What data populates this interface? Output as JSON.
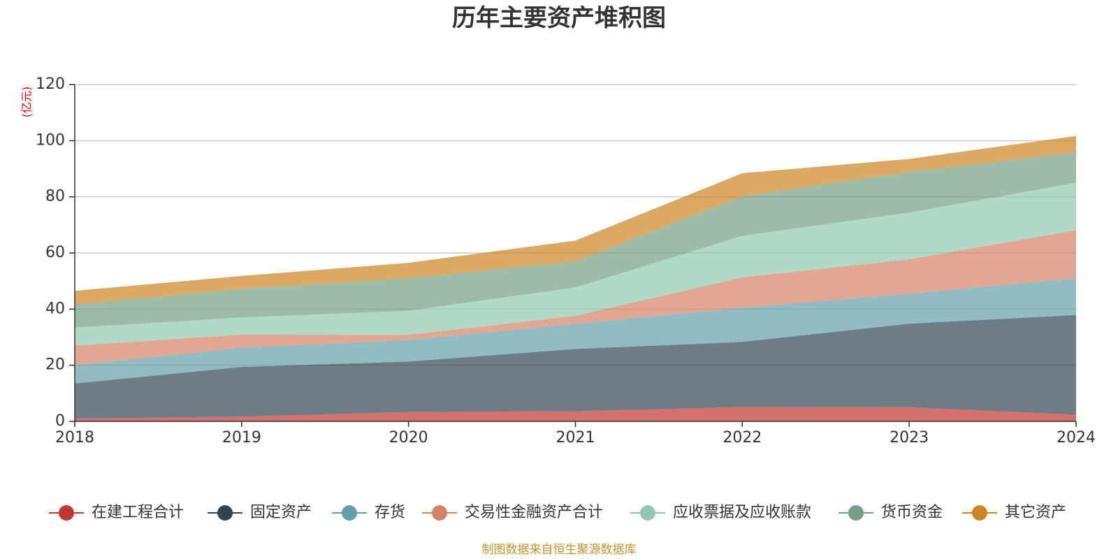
{
  "chart_data": {
    "type": "area",
    "stacked": true,
    "title": "历年主要资产堆积图",
    "ylabel": "(亿元)",
    "xlabel": "",
    "x": [
      "2018",
      "2019",
      "2020",
      "2021",
      "2022",
      "2023",
      "2024"
    ],
    "ylim": [
      0,
      120
    ],
    "yticks": [
      0,
      20,
      40,
      60,
      80,
      100,
      120
    ],
    "grid": true,
    "legend_position": "bottom",
    "series": [
      {
        "name": "在建工程合计",
        "color": "#c23531",
        "values": [
          1.0,
          1.7,
          3.3,
          3.6,
          5.1,
          5.0,
          2.4
        ]
      },
      {
        "name": "固定资产",
        "color": "#2f4554",
        "values": [
          12.5,
          17.7,
          18.0,
          22.2,
          23.2,
          29.8,
          35.5
        ]
      },
      {
        "name": "存货",
        "color": "#61a0a8",
        "values": [
          6.5,
          6.9,
          7.7,
          9.0,
          12.2,
          10.7,
          13.1
        ]
      },
      {
        "name": "交易性金融资产合计",
        "color": "#d48265",
        "values": [
          7.0,
          4.6,
          1.8,
          2.8,
          10.8,
          12.2,
          17.1
        ]
      },
      {
        "name": "应收票据及应收账款",
        "color": "#91c7ae",
        "values": [
          6.4,
          6.1,
          8.6,
          10.1,
          14.8,
          16.7,
          16.9
        ]
      },
      {
        "name": "货币资金",
        "color": "#749f83",
        "values": [
          8.2,
          10.2,
          11.6,
          9.3,
          14.1,
          14.5,
          10.8
        ]
      },
      {
        "name": "其它资产",
        "color": "#ca8622",
        "values": [
          4.9,
          4.6,
          5.5,
          7.4,
          8.2,
          4.6,
          5.9
        ]
      }
    ],
    "source": "制图数据来自恒生聚源数据库"
  }
}
